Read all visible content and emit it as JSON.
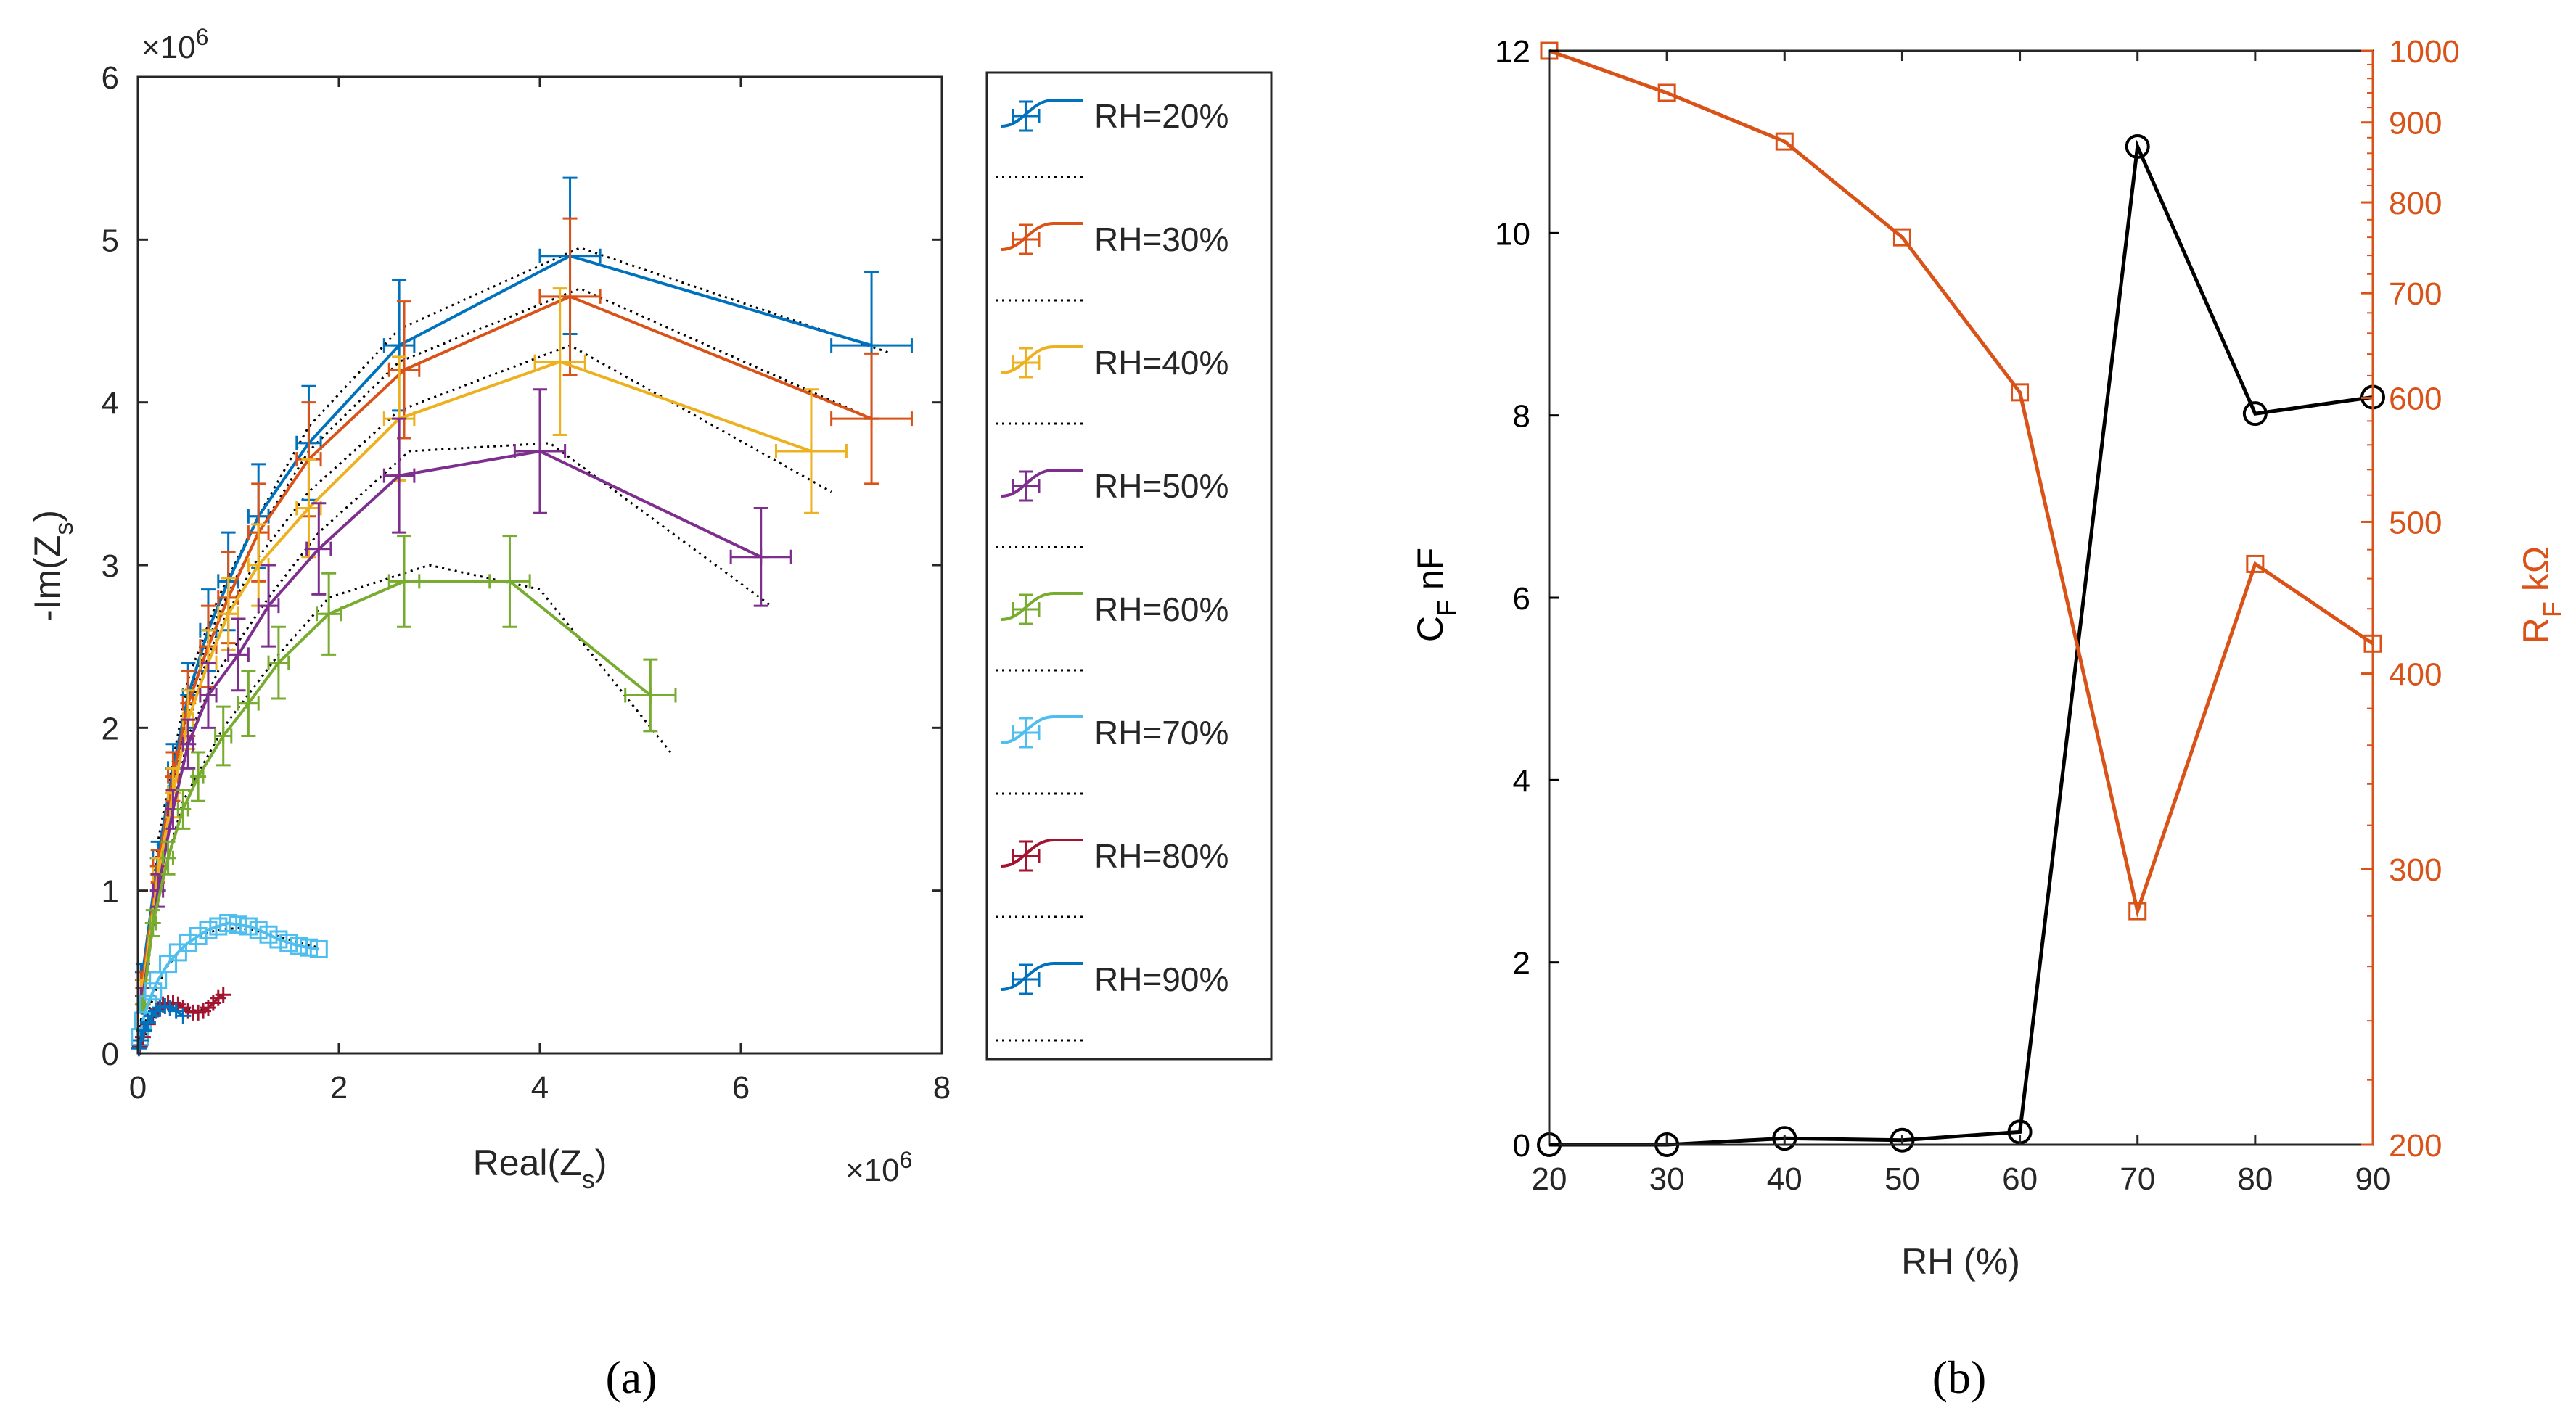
{
  "chart_data": [
    {
      "id": "a",
      "type": "scatter",
      "caption": "(a)",
      "xlabel_main": "Real(Z",
      "xlabel_sub": "s",
      "xlabel_close": ")",
      "ylabel_main": "-Im(Z",
      "ylabel_sub": "s",
      "ylabel_close": ")",
      "x_multiplier": "×10",
      "y_multiplier": "×10",
      "multiplier_exp": "6",
      "xlim": [
        0,
        8
      ],
      "ylim": [
        0,
        6
      ],
      "xticks": [
        "0",
        "2",
        "4",
        "6",
        "8"
      ],
      "yticks": [
        "0",
        "1",
        "2",
        "3",
        "4",
        "5",
        "6"
      ],
      "series": [
        {
          "name": "RH=20%",
          "color": "#0072BD",
          "marker": "cross",
          "x": [
            0.05,
            0.2,
            0.35,
            0.5,
            0.7,
            0.9,
            1.2,
            1.7,
            2.6,
            4.3,
            7.3
          ],
          "y": [
            0.5,
            1.2,
            1.75,
            2.2,
            2.6,
            2.9,
            3.3,
            3.75,
            4.35,
            4.9,
            4.35
          ],
          "yerr": [
            0.05,
            0.1,
            0.15,
            0.2,
            0.25,
            0.3,
            0.32,
            0.35,
            0.4,
            0.48,
            0.45
          ],
          "xerr": [
            0.02,
            0.05,
            0.05,
            0.05,
            0.08,
            0.1,
            0.1,
            0.12,
            0.15,
            0.3,
            0.4
          ]
        },
        {
          "name": "RH=30%",
          "color": "#D95319",
          "marker": "cross",
          "x": [
            0.05,
            0.2,
            0.35,
            0.5,
            0.7,
            0.9,
            1.2,
            1.7,
            2.65,
            4.3,
            7.3
          ],
          "y": [
            0.45,
            1.15,
            1.7,
            2.15,
            2.5,
            2.8,
            3.2,
            3.65,
            4.2,
            4.65,
            3.9
          ],
          "yerr": [
            0.05,
            0.1,
            0.15,
            0.2,
            0.25,
            0.28,
            0.3,
            0.35,
            0.42,
            0.48,
            0.4
          ],
          "xerr": [
            0.02,
            0.05,
            0.05,
            0.05,
            0.08,
            0.1,
            0.1,
            0.12,
            0.15,
            0.3,
            0.4
          ]
        },
        {
          "name": "RH=40%",
          "color": "#EDB120",
          "marker": "cross",
          "x": [
            0.05,
            0.2,
            0.35,
            0.5,
            0.7,
            0.9,
            1.2,
            1.7,
            2.6,
            4.2,
            6.7
          ],
          "y": [
            0.4,
            1.1,
            1.6,
            2.05,
            2.4,
            2.7,
            3.0,
            3.35,
            3.9,
            4.25,
            3.7
          ],
          "yerr": [
            0.05,
            0.1,
            0.15,
            0.18,
            0.2,
            0.22,
            0.25,
            0.3,
            0.38,
            0.45,
            0.38
          ],
          "xerr": [
            0.02,
            0.05,
            0.05,
            0.05,
            0.08,
            0.1,
            0.1,
            0.12,
            0.15,
            0.25,
            0.35
          ]
        },
        {
          "name": "RH=50%",
          "color": "#7E2F8E",
          "marker": "cross",
          "x": [
            0.05,
            0.2,
            0.35,
            0.5,
            0.7,
            1.0,
            1.3,
            1.8,
            2.6,
            4.0,
            6.2
          ],
          "y": [
            0.35,
            1.0,
            1.5,
            1.9,
            2.2,
            2.45,
            2.75,
            3.1,
            3.55,
            3.7,
            3.05
          ],
          "yerr": [
            0.05,
            0.1,
            0.12,
            0.15,
            0.2,
            0.22,
            0.25,
            0.28,
            0.35,
            0.38,
            0.3
          ],
          "xerr": [
            0.02,
            0.05,
            0.05,
            0.05,
            0.08,
            0.1,
            0.1,
            0.12,
            0.15,
            0.25,
            0.3
          ]
        },
        {
          "name": "RH=60%",
          "color": "#77AC30",
          "marker": "cross",
          "x": [
            0.05,
            0.15,
            0.3,
            0.45,
            0.6,
            0.85,
            1.1,
            1.4,
            1.9,
            2.65,
            3.7,
            5.1
          ],
          "y": [
            0.3,
            0.8,
            1.2,
            1.5,
            1.7,
            1.95,
            2.15,
            2.4,
            2.7,
            2.9,
            2.9,
            2.2
          ],
          "yerr": [
            0.05,
            0.08,
            0.1,
            0.12,
            0.15,
            0.18,
            0.2,
            0.22,
            0.25,
            0.28,
            0.28,
            0.22
          ],
          "xerr": [
            0.02,
            0.03,
            0.05,
            0.05,
            0.05,
            0.08,
            0.1,
            0.1,
            0.12,
            0.15,
            0.2,
            0.25
          ]
        },
        {
          "name": "RH=70%",
          "color": "#4DBEEE",
          "marker": "square",
          "x": [
            0.02,
            0.05,
            0.1,
            0.15,
            0.2,
            0.3,
            0.4,
            0.5,
            0.6,
            0.7,
            0.8,
            0.9,
            1.0,
            1.1,
            1.2,
            1.3,
            1.4,
            1.5,
            1.6,
            1.7,
            1.8
          ],
          "y": [
            0.1,
            0.2,
            0.3,
            0.38,
            0.45,
            0.55,
            0.62,
            0.68,
            0.72,
            0.76,
            0.78,
            0.8,
            0.79,
            0.78,
            0.76,
            0.73,
            0.7,
            0.68,
            0.66,
            0.65,
            0.64
          ],
          "yerr": [],
          "xerr": []
        },
        {
          "name": "RH=80%",
          "color": "#A2142F",
          "marker": "cross",
          "x": [
            0.02,
            0.05,
            0.1,
            0.15,
            0.2,
            0.25,
            0.3,
            0.35,
            0.4,
            0.45,
            0.5,
            0.55,
            0.6,
            0.65,
            0.7,
            0.75,
            0.8,
            0.85
          ],
          "y": [
            0.04,
            0.1,
            0.18,
            0.23,
            0.27,
            0.3,
            0.31,
            0.31,
            0.3,
            0.28,
            0.26,
            0.25,
            0.25,
            0.26,
            0.28,
            0.31,
            0.34,
            0.36
          ],
          "yerr": [],
          "xerr": []
        },
        {
          "name": "RH=90%",
          "color": "#0072BD",
          "marker": "cross",
          "x": [
            0.01,
            0.03,
            0.06,
            0.1,
            0.14,
            0.18,
            0.22,
            0.27,
            0.32,
            0.38,
            0.45
          ],
          "y": [
            0.03,
            0.08,
            0.14,
            0.19,
            0.23,
            0.26,
            0.28,
            0.29,
            0.28,
            0.26,
            0.23
          ],
          "yerr": [],
          "xerr": []
        }
      ],
      "fit_curves": [
        {
          "x": [
            0.0,
            0.2,
            0.5,
            0.8,
            1.2,
            1.7,
            2.6,
            4.4,
            7.5
          ],
          "y": [
            0.0,
            1.3,
            2.3,
            2.8,
            3.3,
            3.85,
            4.45,
            4.95,
            4.3
          ]
        },
        {
          "x": [
            0.0,
            0.2,
            0.5,
            0.8,
            1.2,
            1.7,
            2.6,
            4.4,
            7.3
          ],
          "y": [
            0.0,
            1.2,
            2.2,
            2.7,
            3.2,
            3.7,
            4.25,
            4.7,
            3.9
          ]
        },
        {
          "x": [
            0.0,
            0.2,
            0.5,
            0.8,
            1.2,
            1.7,
            2.6,
            4.3,
            6.9
          ],
          "y": [
            0.0,
            1.15,
            2.1,
            2.6,
            3.05,
            3.45,
            3.95,
            4.35,
            3.45
          ]
        },
        {
          "x": [
            0.0,
            0.2,
            0.5,
            0.8,
            1.3,
            1.8,
            2.7,
            4.1,
            6.3
          ],
          "y": [
            0.0,
            1.05,
            1.95,
            2.35,
            2.8,
            3.2,
            3.7,
            3.75,
            2.75
          ]
        },
        {
          "x": [
            0.0,
            0.15,
            0.45,
            0.85,
            1.4,
            1.9,
            2.9,
            4.0,
            5.3
          ],
          "y": [
            0.0,
            0.85,
            1.55,
            2.0,
            2.45,
            2.8,
            3.0,
            2.85,
            1.85
          ]
        },
        {
          "x": [
            0.0,
            0.1,
            0.2,
            0.3,
            0.45,
            0.6,
            0.8,
            1.0,
            1.2,
            1.4,
            1.6,
            1.8
          ],
          "y": [
            0.0,
            0.25,
            0.42,
            0.54,
            0.65,
            0.72,
            0.76,
            0.77,
            0.75,
            0.72,
            0.68,
            0.65
          ]
        },
        {
          "x": [
            0.0,
            0.1,
            0.2,
            0.35,
            0.5,
            0.6,
            0.7,
            0.85
          ],
          "y": [
            0.0,
            0.15,
            0.25,
            0.3,
            0.27,
            0.26,
            0.28,
            0.35
          ]
        },
        {
          "x": [
            0.0,
            0.06,
            0.14,
            0.22,
            0.3,
            0.4,
            0.45
          ],
          "y": [
            0.0,
            0.13,
            0.22,
            0.27,
            0.28,
            0.26,
            0.23
          ]
        }
      ]
    },
    {
      "id": "b",
      "type": "line",
      "caption": "(b)",
      "xlabel": "RH (%)",
      "ylabel_left_main": "C",
      "ylabel_left_sub": "F",
      "ylabel_left_unit": " nF",
      "ylabel_right_main": "R",
      "ylabel_right_sub": "F",
      "ylabel_right_unit": " kΩ",
      "xlim": [
        20,
        90
      ],
      "ylim_left": [
        0,
        12
      ],
      "ylim_right": [
        200,
        1000
      ],
      "right_scale": "log",
      "xticks": [
        "20",
        "30",
        "40",
        "50",
        "60",
        "70",
        "80",
        "90"
      ],
      "yticks_left": [
        "0",
        "2",
        "4",
        "6",
        "8",
        "10",
        "12"
      ],
      "yticks_right": [
        "200",
        "300",
        "400",
        "500",
        "600",
        "700",
        "800",
        "900",
        "1000"
      ],
      "series": [
        {
          "name": "C_F",
          "axis": "left",
          "color": "#000000",
          "marker": "circle",
          "x": [
            20,
            30,
            40,
            50,
            60,
            70,
            80,
            90
          ],
          "y": [
            0.0,
            0.0,
            0.07,
            0.05,
            0.14,
            10.95,
            8.02,
            8.2
          ]
        },
        {
          "name": "R_F",
          "axis": "right",
          "color": "#D95319",
          "marker": "square",
          "x": [
            20,
            30,
            40,
            50,
            60,
            70,
            80,
            90
          ],
          "y": [
            1000,
            940,
            875,
            760,
            605,
            282,
            470,
            418
          ]
        }
      ]
    }
  ]
}
